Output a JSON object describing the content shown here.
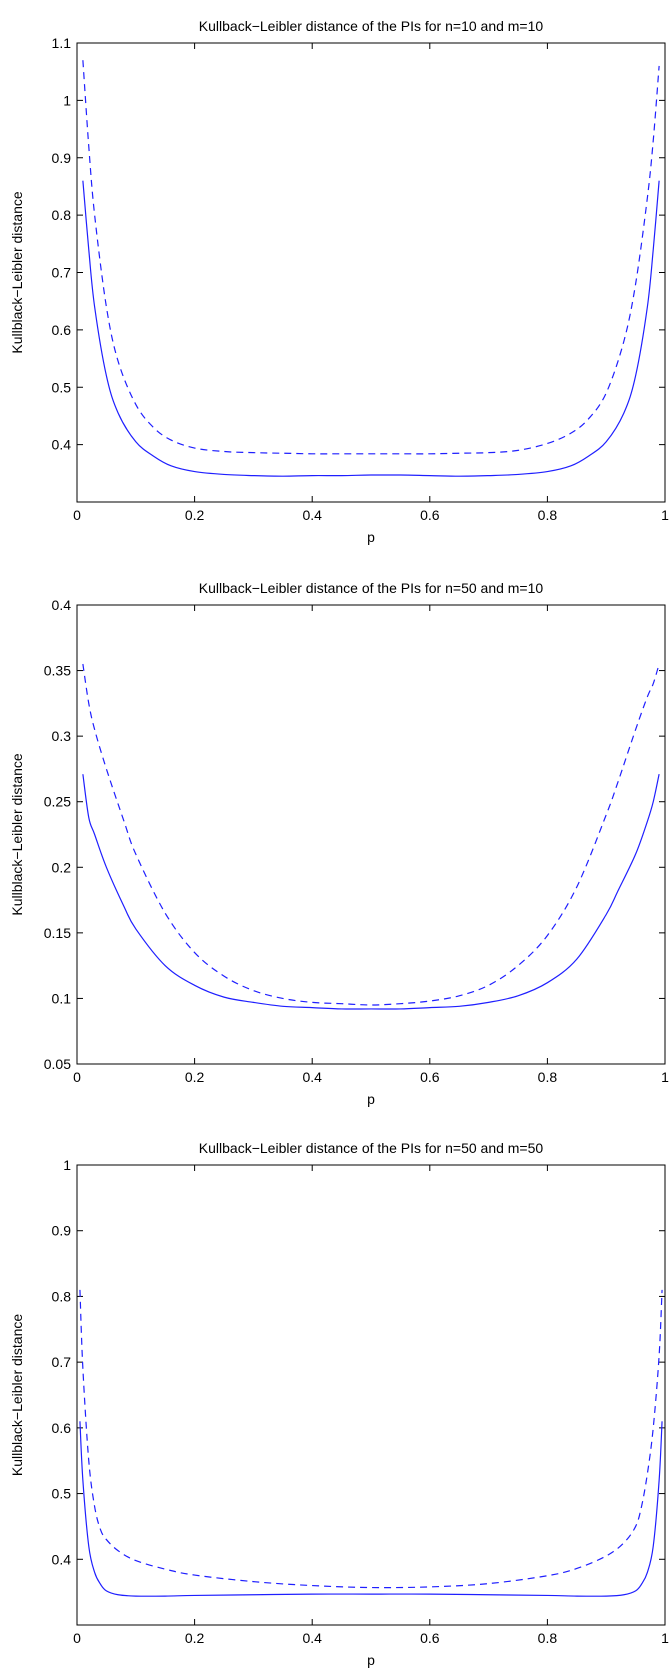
{
  "chart_data": [
    {
      "type": "line",
      "title": "Kullback−Leibler distance of the PIs for n=10  and m=10",
      "xlabel": "p",
      "ylabel": "Kullblack−Leibler distance",
      "xlim": [
        0,
        1
      ],
      "ylim": [
        0.3,
        1.1
      ],
      "xticks": [
        0,
        0.2,
        0.4,
        0.6,
        0.8,
        1
      ],
      "xtick_labels": [
        "0",
        "0.2",
        "0.4",
        "0.6",
        "0.8",
        "1"
      ],
      "yticks": [
        0.4,
        0.5,
        0.6,
        0.7,
        0.8,
        0.9,
        1,
        1.1
      ],
      "ytick_labels": [
        "0.4",
        "0.5",
        "0.6",
        "0.7",
        "0.8",
        "0.9",
        "1",
        "1.1"
      ],
      "grid": false,
      "x": [
        0.01,
        0.02,
        0.03,
        0.05,
        0.07,
        0.1,
        0.13,
        0.16,
        0.2,
        0.25,
        0.3,
        0.35,
        0.4,
        0.45,
        0.5,
        0.55,
        0.6,
        0.65,
        0.7,
        0.75,
        0.8,
        0.84,
        0.87,
        0.9,
        0.93,
        0.95,
        0.97,
        0.98,
        0.99
      ],
      "series": [
        {
          "style": "solid",
          "values": [
            0.86,
            0.74,
            0.64,
            0.52,
            0.455,
            0.405,
            0.38,
            0.363,
            0.353,
            0.348,
            0.346,
            0.345,
            0.346,
            0.346,
            0.347,
            0.347,
            0.346,
            0.345,
            0.346,
            0.348,
            0.353,
            0.363,
            0.38,
            0.405,
            0.455,
            0.52,
            0.64,
            0.74,
            0.86
          ]
        },
        {
          "style": "dashed",
          "values": [
            1.07,
            0.92,
            0.8,
            0.64,
            0.545,
            0.47,
            0.43,
            0.408,
            0.394,
            0.388,
            0.386,
            0.385,
            0.384,
            0.384,
            0.384,
            0.384,
            0.384,
            0.385,
            0.386,
            0.39,
            0.402,
            0.42,
            0.445,
            0.49,
            0.58,
            0.68,
            0.83,
            0.93,
            1.06
          ]
        }
      ]
    },
    {
      "type": "line",
      "title": "Kullback−Leibler distance of the PIs for n=50  and m=10",
      "xlabel": "p",
      "ylabel": "Kullblack−Leibler distance",
      "xlim": [
        0,
        1
      ],
      "ylim": [
        0.05,
        0.4
      ],
      "xticks": [
        0,
        0.2,
        0.4,
        0.6,
        0.8,
        1
      ],
      "xtick_labels": [
        "0",
        "0.2",
        "0.4",
        "0.6",
        "0.8",
        "1"
      ],
      "yticks": [
        0.05,
        0.1,
        0.15,
        0.2,
        0.25,
        0.3,
        0.35,
        0.4
      ],
      "ytick_labels": [
        "0.05",
        "0.1",
        "0.15",
        "0.2",
        "0.25",
        "0.3",
        "0.35",
        "0.4"
      ],
      "grid": false,
      "x": [
        0.01,
        0.02,
        0.03,
        0.05,
        0.08,
        0.1,
        0.15,
        0.2,
        0.25,
        0.3,
        0.35,
        0.4,
        0.45,
        0.5,
        0.55,
        0.6,
        0.65,
        0.7,
        0.75,
        0.8,
        0.85,
        0.9,
        0.92,
        0.95,
        0.97,
        0.98,
        0.99
      ],
      "series": [
        {
          "style": "solid",
          "values": [
            0.271,
            0.238,
            0.225,
            0.2,
            0.17,
            0.153,
            0.125,
            0.11,
            0.101,
            0.097,
            0.094,
            0.093,
            0.092,
            0.092,
            0.092,
            0.093,
            0.094,
            0.097,
            0.102,
            0.112,
            0.13,
            0.164,
            0.182,
            0.21,
            0.235,
            0.25,
            0.271
          ]
        },
        {
          "style": "dashed",
          "values": [
            0.355,
            0.325,
            0.305,
            0.275,
            0.235,
            0.21,
            0.165,
            0.135,
            0.117,
            0.106,
            0.1,
            0.097,
            0.096,
            0.095,
            0.096,
            0.098,
            0.102,
            0.11,
            0.125,
            0.148,
            0.185,
            0.24,
            0.265,
            0.305,
            0.33,
            0.34,
            0.355
          ]
        }
      ]
    },
    {
      "type": "line",
      "title": "Kullback−Leibler distance of the PIs for n=50  and m=50",
      "xlabel": "p",
      "ylabel": "Kullblack−Leibler distance",
      "xlim": [
        0,
        1
      ],
      "ylim": [
        0.3,
        1
      ],
      "xticks": [
        0,
        0.2,
        0.4,
        0.6,
        0.8,
        1
      ],
      "xtick_labels": [
        "0",
        "0.2",
        "0.4",
        "0.6",
        "0.8",
        "1"
      ],
      "yticks": [
        0.4,
        0.5,
        0.6,
        0.7,
        0.8,
        0.9,
        1
      ],
      "ytick_labels": [
        "0.4",
        "0.5",
        "0.6",
        "0.7",
        "0.8",
        "0.9",
        "1"
      ],
      "grid": false,
      "x": [
        0.005,
        0.01,
        0.02,
        0.03,
        0.04,
        0.05,
        0.07,
        0.1,
        0.15,
        0.2,
        0.3,
        0.4,
        0.5,
        0.6,
        0.7,
        0.8,
        0.85,
        0.9,
        0.93,
        0.95,
        0.96,
        0.97,
        0.98,
        0.99,
        0.995
      ],
      "series": [
        {
          "style": "solid",
          "values": [
            0.61,
            0.52,
            0.42,
            0.38,
            0.362,
            0.352,
            0.346,
            0.344,
            0.344,
            0.345,
            0.346,
            0.347,
            0.347,
            0.347,
            0.346,
            0.345,
            0.344,
            0.344,
            0.346,
            0.352,
            0.362,
            0.38,
            0.42,
            0.52,
            0.61
          ]
        },
        {
          "style": "dashed",
          "values": [
            0.81,
            0.69,
            0.55,
            0.48,
            0.445,
            0.43,
            0.413,
            0.398,
            0.385,
            0.376,
            0.366,
            0.36,
            0.357,
            0.358,
            0.363,
            0.375,
            0.386,
            0.405,
            0.425,
            0.45,
            0.48,
            0.53,
            0.6,
            0.71,
            0.81
          ]
        }
      ]
    }
  ]
}
